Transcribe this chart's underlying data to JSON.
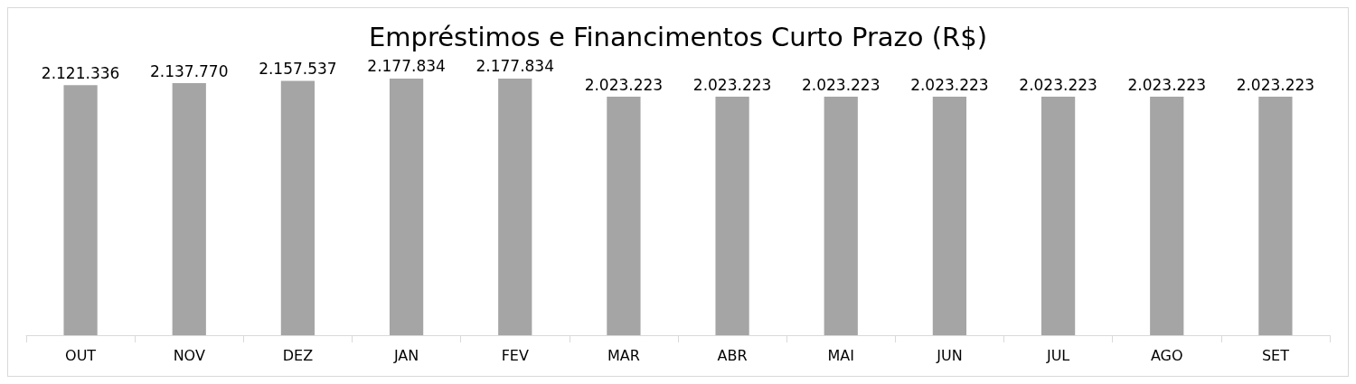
{
  "chart_data": {
    "type": "bar",
    "title": "Empréstimos e Financimentos Curto Prazo (R$)",
    "categories": [
      "OUT",
      "NOV",
      "DEZ",
      "JAN",
      "FEV",
      "MAR",
      "ABR",
      "MAI",
      "JUN",
      "JUL",
      "AGO",
      "SET"
    ],
    "values": [
      2121336,
      2137770,
      2157537,
      2177834,
      2177834,
      2023223,
      2023223,
      2023223,
      2023223,
      2023223,
      2023223,
      2023223
    ],
    "value_labels": [
      "2.121.336",
      "2.137.770",
      "2.157.537",
      "2.177.834",
      "2.177.834",
      "2.023.223",
      "2.023.223",
      "2.023.223",
      "2.023.223",
      "2.023.223",
      "2.023.223",
      "2.023.223"
    ],
    "color": "#a5a5a5",
    "ylim": [
      0,
      2200000
    ],
    "tick_labels": "x"
  }
}
